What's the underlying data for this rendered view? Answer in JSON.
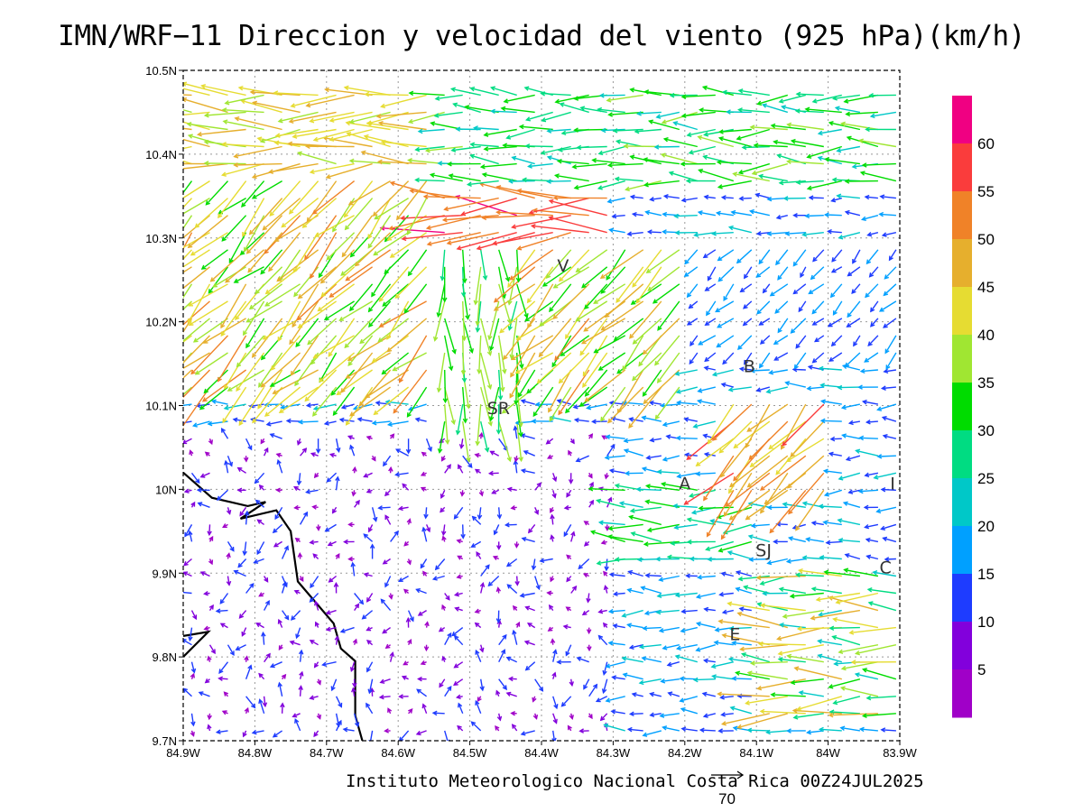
{
  "title": "IMN/WRF−11 Direccion y velocidad del viento (925 hPa)(km/h)",
  "footer": "Instituto Meteorologico Nacional Costa Rica 00Z24JUL2025",
  "reference_vector": {
    "label": "70",
    "speed": 70
  },
  "axes": {
    "x_ticks": [
      "84.9W",
      "84.8W",
      "84.7W",
      "84.6W",
      "84.5W",
      "84.4W",
      "84.3W",
      "84.2W",
      "84.1W",
      "84W",
      "83.9W"
    ],
    "y_ticks": [
      "10.5N",
      "10.4N",
      "10.3N",
      "10.2N",
      "10.1N",
      "10N",
      "9.9N",
      "9.8N",
      "9.7N"
    ],
    "lon_range": [
      -84.9,
      -83.9
    ],
    "lat_range": [
      9.7,
      10.5
    ],
    "grid": "dotted"
  },
  "colorbar": {
    "labels": [
      "60",
      "55",
      "50",
      "45",
      "40",
      "35",
      "30",
      "25",
      "20",
      "15",
      "10",
      "5"
    ],
    "bins": [
      {
        "min": 0,
        "max": 5,
        "color": "#a000c8"
      },
      {
        "min": 5,
        "max": 10,
        "color": "#8200dc"
      },
      {
        "min": 10,
        "max": 15,
        "color": "#1e3cff"
      },
      {
        "min": 15,
        "max": 20,
        "color": "#00a0ff"
      },
      {
        "min": 20,
        "max": 25,
        "color": "#00c8c8"
      },
      {
        "min": 25,
        "max": 30,
        "color": "#00dc82"
      },
      {
        "min": 30,
        "max": 35,
        "color": "#00dc00"
      },
      {
        "min": 35,
        "max": 40,
        "color": "#a0e632"
      },
      {
        "min": 40,
        "max": 45,
        "color": "#e6dc32"
      },
      {
        "min": 45,
        "max": 50,
        "color": "#e6af2d"
      },
      {
        "min": 50,
        "max": 55,
        "color": "#f08228"
      },
      {
        "min": 55,
        "max": 60,
        "color": "#fa3c3c"
      },
      {
        "min": 60,
        "max": 65,
        "color": "#f00082"
      }
    ]
  },
  "places": [
    {
      "label": "V",
      "lon": -84.37,
      "lat": 10.26
    },
    {
      "label": "B",
      "lon": -84.11,
      "lat": 10.14
    },
    {
      "label": "SR",
      "lon": -84.46,
      "lat": 10.09
    },
    {
      "label": "A",
      "lon": -84.2,
      "lat": 10.0
    },
    {
      "label": "I",
      "lon": -83.91,
      "lat": 10.0
    },
    {
      "label": "SJ",
      "lon": -84.09,
      "lat": 9.92
    },
    {
      "label": "C",
      "lon": -83.92,
      "lat": 9.9
    },
    {
      "label": "E",
      "lon": -84.13,
      "lat": 9.82
    }
  ],
  "coastline": [
    [
      [
        -84.9,
        10.02
      ],
      [
        -84.86,
        9.99
      ],
      [
        -84.81,
        9.98
      ],
      [
        -84.785,
        9.985
      ],
      [
        -84.82,
        9.965
      ],
      [
        -84.77,
        9.975
      ],
      [
        -84.75,
        9.95
      ],
      [
        -84.74,
        9.89
      ],
      [
        -84.72,
        9.87
      ],
      [
        -84.69,
        9.84
      ],
      [
        -84.68,
        9.81
      ],
      [
        -84.66,
        9.795
      ],
      [
        -84.66,
        9.73
      ],
      [
        -84.65,
        9.7
      ]
    ],
    [
      [
        -84.9,
        9.8
      ],
      [
        -84.865,
        9.83
      ],
      [
        -84.9,
        9.825
      ]
    ]
  ],
  "chart_data": {
    "type": "vector_field",
    "units": "km/h",
    "level": "925 hPa",
    "regions": [
      {
        "lon": [
          -84.9,
          -84.55
        ],
        "lat": [
          10.38,
          10.5
        ],
        "dir_to": "west",
        "speed": [
          38,
          48
        ]
      },
      {
        "lon": [
          -84.55,
          -83.9
        ],
        "lat": [
          10.36,
          10.5
        ],
        "dir_to": "west",
        "speed": [
          22,
          36
        ]
      },
      {
        "lon": [
          -84.55,
          -84.3
        ],
        "lat": [
          10.3,
          10.38
        ],
        "dir_to": "west",
        "speed": [
          50,
          62
        ]
      },
      {
        "lon": [
          -84.9,
          -84.55
        ],
        "lat": [
          10.12,
          10.38
        ],
        "dir_to": "southwest",
        "speed": [
          30,
          52
        ]
      },
      {
        "lon": [
          -84.55,
          -84.42
        ],
        "lat": [
          10.08,
          10.3
        ],
        "dir_to": "south",
        "speed": [
          28,
          40
        ]
      },
      {
        "lon": [
          -84.42,
          -84.2
        ],
        "lat": [
          10.12,
          10.3
        ],
        "dir_to": "southwest",
        "speed": [
          30,
          52
        ]
      },
      {
        "lon": [
          -84.2,
          -83.9
        ],
        "lat": [
          10.15,
          10.3
        ],
        "dir_to": "southwest",
        "speed": [
          10,
          20
        ]
      },
      {
        "lon": [
          -84.15,
          -84.0
        ],
        "lat": [
          9.98,
          10.12
        ],
        "dir_to": "southwest",
        "speed": [
          40,
          58
        ]
      },
      {
        "lon": [
          -84.3,
          -84.1
        ],
        "lat": [
          9.9,
          10.0
        ],
        "dir_to": "west",
        "speed": [
          22,
          35
        ]
      },
      {
        "lon": [
          -84.9,
          -84.3
        ],
        "lat": [
          9.7,
          10.08
        ],
        "dir_to": "variable",
        "speed": [
          2,
          14
        ]
      },
      {
        "lon": [
          -84.1,
          -83.9
        ],
        "lat": [
          9.72,
          9.9
        ],
        "dir_to": "west",
        "speed": [
          22,
          50
        ]
      }
    ]
  }
}
